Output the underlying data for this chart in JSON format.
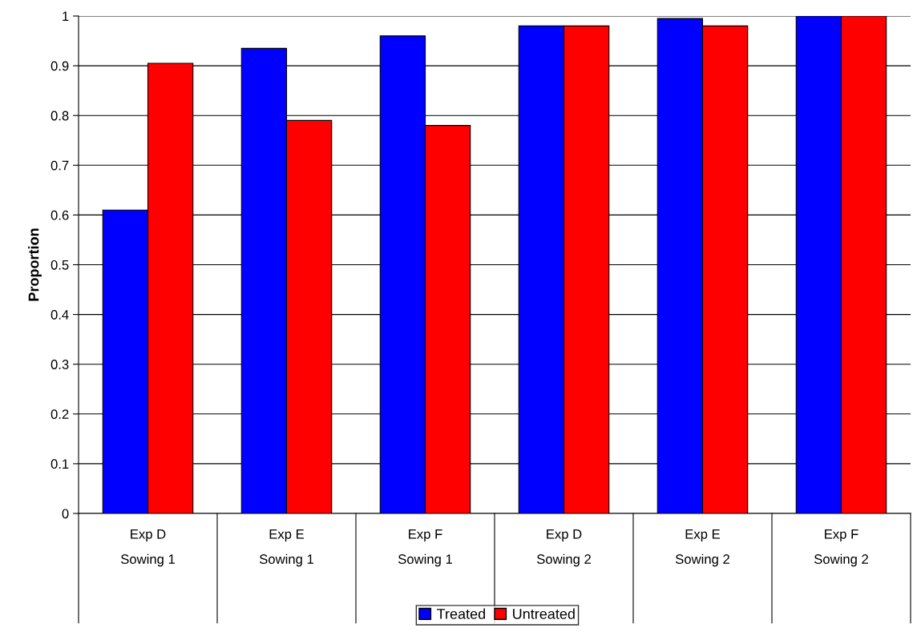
{
  "chart_data": {
    "type": "bar",
    "ylabel": "Proportion",
    "categories": [
      "Exp D\nSowing 1",
      "Exp E\nSowing 1",
      "Exp F\nSowing 1",
      "Exp D\nSowing 2",
      "Exp E\nSowing 2",
      "Exp F\nSowing 2"
    ],
    "series": [
      {
        "name": "Treated",
        "color": "#0000ff",
        "values": [
          0.61,
          0.935,
          0.96,
          0.98,
          0.995,
          1.0
        ]
      },
      {
        "name": "Untreated",
        "color": "#ff0000",
        "values": [
          0.905,
          0.79,
          0.78,
          0.98,
          0.98,
          1.0
        ]
      }
    ],
    "ylim": [
      0,
      1
    ],
    "yticks": [
      0,
      0.1,
      0.2,
      0.3,
      0.4,
      0.5,
      0.6,
      0.7,
      0.8,
      0.9,
      1
    ],
    "grid": "y",
    "legend": "bottom"
  }
}
